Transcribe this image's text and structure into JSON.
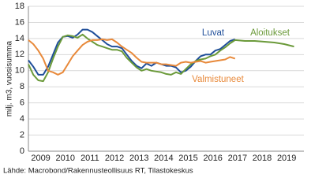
{
  "chart_data": {
    "type": "line",
    "ylabel": "milj. m3, vuosisumma",
    "source": "Lähde: Macrobond/Rakennusteollisuus RT, Tilastokeskus",
    "xlim": [
      2009,
      2020.2
    ],
    "ylim": [
      0,
      18
    ],
    "yticks": [
      0,
      2,
      4,
      6,
      8,
      10,
      12,
      14,
      16,
      18
    ],
    "xticks": [
      {
        "value": 2009.5,
        "label": "2009"
      },
      {
        "value": 2010.5,
        "label": "2010"
      },
      {
        "value": 2011.5,
        "label": "2011"
      },
      {
        "value": 2012.5,
        "label": "2012"
      },
      {
        "value": 2013.5,
        "label": "2013"
      },
      {
        "value": 2014.5,
        "label": "2014"
      },
      {
        "value": 2015.5,
        "label": "2015"
      },
      {
        "value": 2016.5,
        "label": "2016"
      },
      {
        "value": 2017.5,
        "label": "2017"
      },
      {
        "value": 2018.5,
        "label": "2018"
      },
      {
        "value": 2019.5,
        "label": "2019"
      }
    ],
    "grid": true,
    "series": [
      {
        "name": "Luvat",
        "color": "#1f4e99",
        "x": [
          2009.0,
          2009.2,
          2009.4,
          2009.6,
          2009.8,
          2010.0,
          2010.2,
          2010.4,
          2010.6,
          2010.8,
          2011.0,
          2011.2,
          2011.4,
          2011.6,
          2011.8,
          2012.0,
          2012.2,
          2012.4,
          2012.6,
          2012.8,
          2013.0,
          2013.2,
          2013.4,
          2013.6,
          2013.8,
          2014.0,
          2014.2,
          2014.4,
          2014.6,
          2014.8,
          2015.0,
          2015.2,
          2015.4,
          2015.6,
          2015.8,
          2016.0,
          2016.2,
          2016.4,
          2016.6,
          2016.8,
          2017.0,
          2017.2,
          2017.4
        ],
        "values": [
          11.3,
          10.5,
          9.5,
          9.5,
          10.5,
          12,
          13.5,
          14.2,
          14.3,
          14.1,
          14.5,
          15.1,
          15.1,
          14.8,
          14.3,
          13.8,
          13.3,
          13.0,
          13.0,
          12.8,
          12.0,
          11.2,
          10.6,
          10.3,
          10.9,
          10.6,
          11.0,
          10.8,
          10.6,
          10.6,
          10.4,
          9.8,
          10.0,
          10.5,
          11.2,
          11.8,
          12.0,
          12.0,
          12.5,
          12.7,
          13.2,
          13.7,
          13.9
        ]
      },
      {
        "name": "Aloitukset",
        "color": "#6b9a3a",
        "x": [
          2009.0,
          2009.2,
          2009.4,
          2009.6,
          2009.8,
          2010.0,
          2010.2,
          2010.4,
          2010.6,
          2010.8,
          2011.0,
          2011.2,
          2011.4,
          2011.6,
          2011.8,
          2012.0,
          2012.2,
          2012.4,
          2012.6,
          2012.8,
          2013.0,
          2013.2,
          2013.4,
          2013.6,
          2013.8,
          2014.0,
          2014.2,
          2014.4,
          2014.6,
          2014.8,
          2015.0,
          2015.2,
          2015.4,
          2015.6,
          2015.8,
          2016.0,
          2016.2,
          2016.4,
          2016.6,
          2016.8,
          2017.0,
          2017.2,
          2017.4,
          2017.8,
          2018.2,
          2018.6,
          2019.0,
          2019.4,
          2019.8
        ],
        "values": [
          10.8,
          9.5,
          8.8,
          8.7,
          9.8,
          11.5,
          13.0,
          14.2,
          14.4,
          14.3,
          14.1,
          14.5,
          14.0,
          13.6,
          13.2,
          13.0,
          12.8,
          12.6,
          12.6,
          12.4,
          11.6,
          11.0,
          10.4,
          10.0,
          10.2,
          10.0,
          9.9,
          9.8,
          9.6,
          9.5,
          9.8,
          9.6,
          10.2,
          10.8,
          11.2,
          11.4,
          11.5,
          11.8,
          12.0,
          12.5,
          12.9,
          13.4,
          13.8,
          13.7,
          13.7,
          13.6,
          13.5,
          13.3,
          13.0
        ]
      },
      {
        "name": "Valmistuneet",
        "color": "#e8893a",
        "x": [
          2009.0,
          2009.2,
          2009.4,
          2009.6,
          2009.8,
          2010.0,
          2010.2,
          2010.4,
          2010.6,
          2010.8,
          2011.0,
          2011.2,
          2011.4,
          2011.6,
          2011.8,
          2012.0,
          2012.2,
          2012.4,
          2012.6,
          2012.8,
          2013.0,
          2013.2,
          2013.4,
          2013.6,
          2013.8,
          2014.0,
          2014.2,
          2014.4,
          2014.6,
          2014.8,
          2015.0,
          2015.2,
          2015.4,
          2015.6,
          2015.8,
          2016.0,
          2016.2,
          2016.4,
          2016.6,
          2016.8,
          2017.0,
          2017.2,
          2017.4
        ],
        "values": [
          13.8,
          13.3,
          12.5,
          11.5,
          10.0,
          9.8,
          9.5,
          9.8,
          10.8,
          11.8,
          12.5,
          13.2,
          13.6,
          13.8,
          13.8,
          13.9,
          13.8,
          13.9,
          13.5,
          13.0,
          12.6,
          12.2,
          11.6,
          11.1,
          11.0,
          11.0,
          11.0,
          10.8,
          10.8,
          10.7,
          10.6,
          11.0,
          11.1,
          11.0,
          11.1,
          11.2,
          11.0,
          11.1,
          11.2,
          11.3,
          11.4,
          11.7,
          11.5
        ]
      }
    ]
  }
}
